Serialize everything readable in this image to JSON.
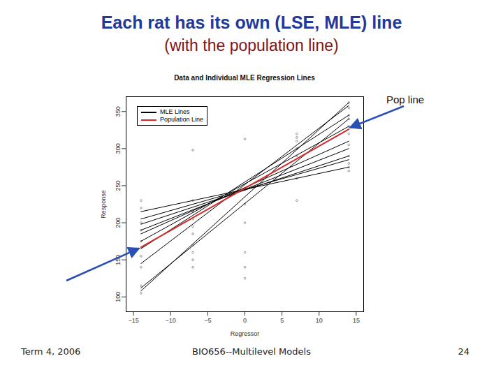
{
  "slide": {
    "title": "Each rat has its own (LSE, MLE) line",
    "subtitle": "(with the population line)",
    "annotation": "Pop line",
    "footer": {
      "left": "Term 4, 2006",
      "center": "BIO656--Multilevel Models",
      "right": "24"
    }
  },
  "chart_data": {
    "type": "line",
    "title": "Data and Individual MLE Regression Lines",
    "x_label": "Regressor",
    "y_label": "Response",
    "x": [
      -14,
      14
    ],
    "series": [
      {
        "name": "MLE Lines",
        "color": "#000000",
        "lines": [
          [
            108,
            362
          ],
          [
            112,
            340
          ],
          [
            145,
            358
          ],
          [
            165,
            345
          ],
          [
            175,
            330
          ],
          [
            190,
            300
          ],
          [
            198,
            290
          ],
          [
            215,
            275
          ],
          [
            205,
            285
          ],
          [
            185,
            310
          ]
        ]
      },
      {
        "name": "Population Line",
        "color": "#d42a2a",
        "values": [
          167,
          326
        ]
      }
    ],
    "points": {
      "x": [
        -14,
        -14,
        -14,
        -14,
        -14,
        -14,
        -14,
        -14,
        -14,
        -7,
        -7,
        -7,
        -7,
        -7,
        -7,
        -7,
        -7,
        -7,
        -7,
        0,
        0,
        0,
        0,
        0,
        0,
        0,
        7,
        7,
        7,
        7,
        7,
        7,
        7,
        14,
        14,
        14,
        14,
        14,
        14,
        14,
        14,
        14,
        14,
        14
      ],
      "y": [
        230,
        220,
        200,
        190,
        175,
        155,
        140,
        115,
        105,
        298,
        230,
        215,
        205,
        195,
        185,
        170,
        160,
        150,
        140,
        313,
        245,
        225,
        200,
        160,
        140,
        125,
        320,
        315,
        310,
        300,
        290,
        260,
        230,
        362,
        355,
        345,
        340,
        330,
        320,
        305,
        290,
        280,
        275,
        270
      ]
    },
    "xlim": [
      -16,
      16
    ],
    "xticks": [
      -15,
      -10,
      -5,
      0,
      5,
      10,
      15
    ],
    "ylim": [
      80,
      370
    ],
    "yticks": [
      100,
      150,
      200,
      250,
      300,
      350
    ],
    "legend": "top-left",
    "grid": false
  }
}
